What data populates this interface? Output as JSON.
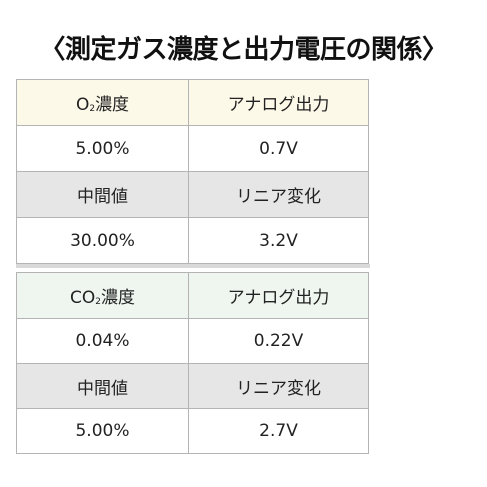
{
  "title": "〈測定ガス濃度と出力電圧の関係〉",
  "o2": {
    "gas_prefix": "O",
    "gas_sub": "2",
    "gas_suffix": "濃度",
    "output_header": "アナログ出力",
    "rows": [
      {
        "concentration": "5.00%",
        "voltage": "0.7V"
      },
      {
        "concentration": "中間値",
        "voltage": "リニア変化"
      },
      {
        "concentration": "30.00%",
        "voltage": "3.2V"
      }
    ]
  },
  "co2": {
    "gas_prefix": "CO",
    "gas_sub": "2",
    "gas_suffix": "濃度",
    "output_header": "アナログ出力",
    "rows": [
      {
        "concentration": "0.04%",
        "voltage": "0.22V"
      },
      {
        "concentration": "中間値",
        "voltage": "リニア変化"
      },
      {
        "concentration": "5.00%",
        "voltage": "2.7V"
      }
    ]
  },
  "colors": {
    "o2_header_bg": "#fdf9e9",
    "co2_header_bg": "#eef6ef",
    "mid_row_bg": "#e6e6e6",
    "border": "#b4b4b4"
  }
}
